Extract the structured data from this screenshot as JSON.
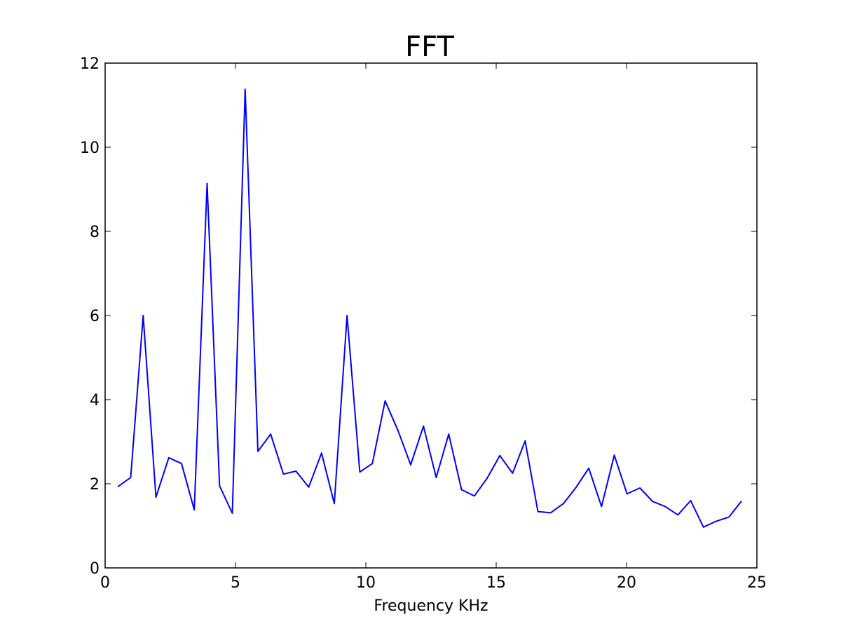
{
  "chart_data": {
    "type": "line",
    "title": "FFT",
    "xlabel": "Frequency KHz",
    "ylabel": "",
    "xlim": [
      0,
      25
    ],
    "ylim": [
      0,
      12
    ],
    "xticks": [
      0,
      5,
      10,
      15,
      20,
      25
    ],
    "yticks": [
      0,
      2,
      4,
      6,
      8,
      10,
      12
    ],
    "xtick_labels": [
      "0",
      "5",
      "10",
      "15",
      "20",
      "25"
    ],
    "ytick_labels": [
      "0",
      "2",
      "4",
      "6",
      "8",
      "10",
      "12"
    ],
    "grid": false,
    "legend": "none",
    "series": [
      {
        "color": "#0000ff",
        "x": [
          0.49,
          0.98,
          1.46,
          1.95,
          2.44,
          2.93,
          3.42,
          3.91,
          4.39,
          4.88,
          5.37,
          5.86,
          6.35,
          6.84,
          7.32,
          7.81,
          8.3,
          8.79,
          9.28,
          9.77,
          10.25,
          10.74,
          11.23,
          11.72,
          12.21,
          12.7,
          13.18,
          13.67,
          14.16,
          14.65,
          15.14,
          15.63,
          16.11,
          16.6,
          17.09,
          17.58,
          18.07,
          18.55,
          19.04,
          19.53,
          20.02,
          20.51,
          21.0,
          21.48,
          21.97,
          22.46,
          22.95,
          23.44,
          23.93,
          24.41
        ],
        "values": [
          1.93,
          2.15,
          6.0,
          1.68,
          2.62,
          2.48,
          1.38,
          9.14,
          1.95,
          1.3,
          11.38,
          2.77,
          3.18,
          2.23,
          2.3,
          1.92,
          2.73,
          1.53,
          6.0,
          2.28,
          2.48,
          3.97,
          3.27,
          2.45,
          3.37,
          2.15,
          3.18,
          1.86,
          1.71,
          2.13,
          2.67,
          2.25,
          3.02,
          1.34,
          1.31,
          1.53,
          1.92,
          2.37,
          1.46,
          2.68,
          1.76,
          1.9,
          1.58,
          1.46,
          1.26,
          1.6,
          0.97,
          1.11,
          1.21,
          1.59
        ]
      }
    ]
  }
}
